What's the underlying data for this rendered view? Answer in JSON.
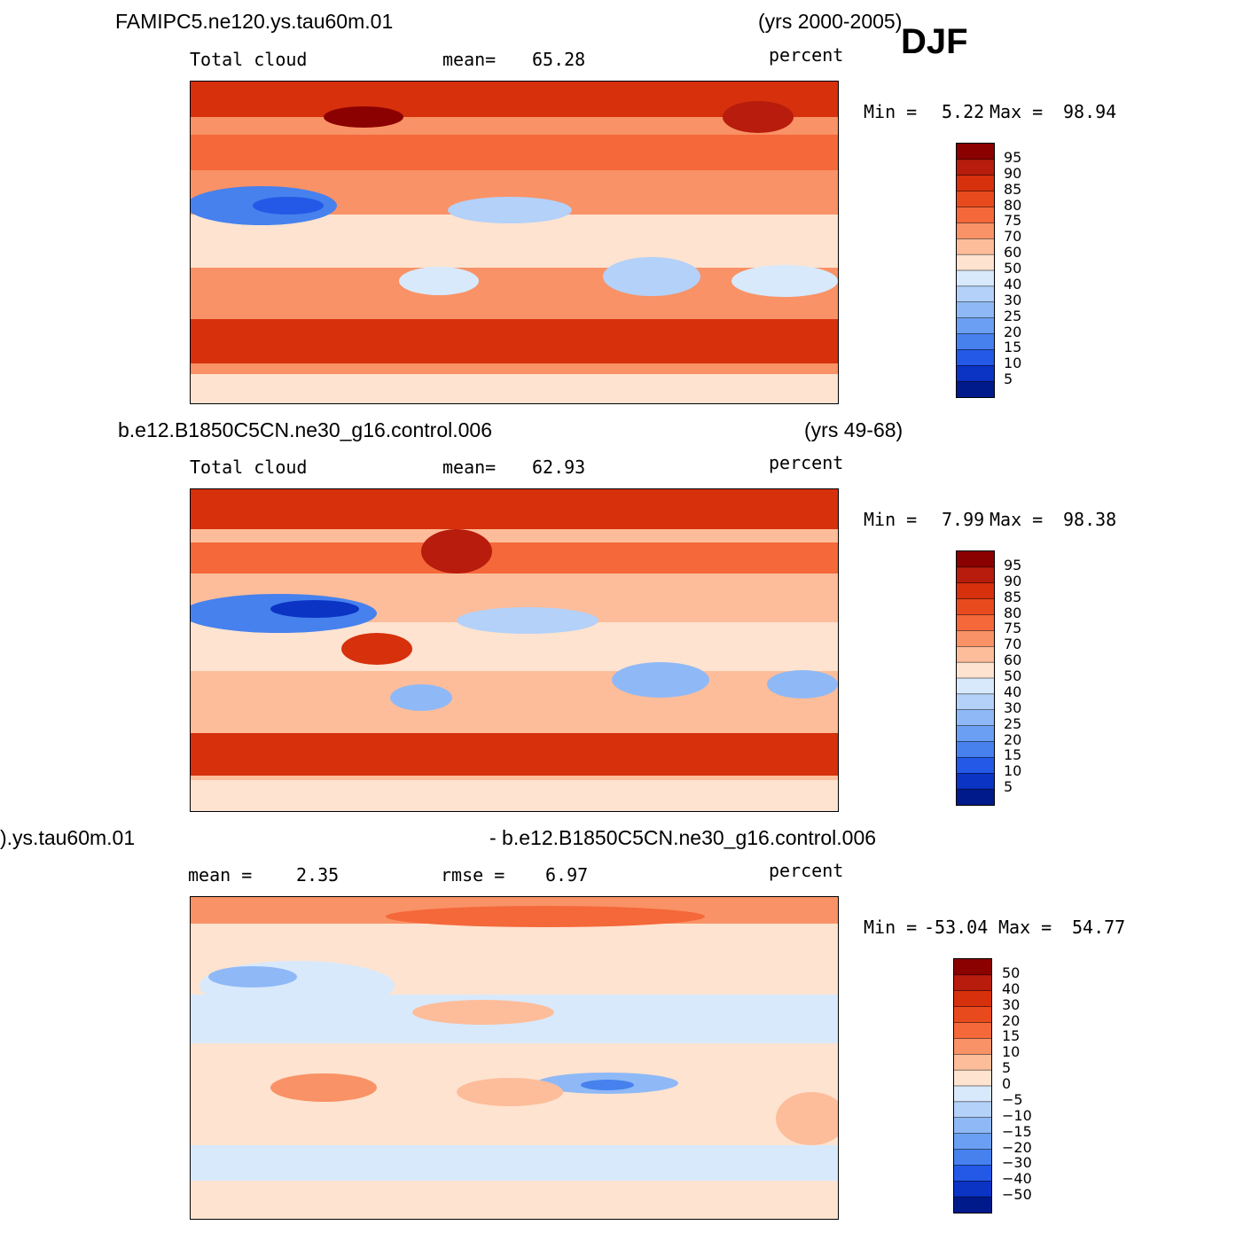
{
  "season_label": "DJF",
  "chart_data": [
    {
      "type": "heatmap",
      "run_name": "FAMIPC5.ne120.ys.tau60m.01",
      "years": "(yrs 2000-2005)",
      "variable": "Total cloud",
      "stat1_label": "mean=",
      "stat1_value": "65.28",
      "units": "percent",
      "min_label": "Min =",
      "min_value": "5.22",
      "max_label": "Max =",
      "max_value": "98.94",
      "colorbar_levels": [
        "95",
        "90",
        "85",
        "80",
        "75",
        "70",
        "60",
        "50",
        "40",
        "30",
        "25",
        "20",
        "15",
        "10",
        "5"
      ],
      "colors": [
        "#8b0000",
        "#b71c0c",
        "#d6300c",
        "#e94a1d",
        "#f4683a",
        "#f99266",
        "#fdbd9a",
        "#fde3d0",
        "#d8e9fc",
        "#b3d1f9",
        "#8fb9f6",
        "#6a9ff3",
        "#4681ee",
        "#2359e6",
        "#0b33c4",
        "#001a8c"
      ]
    },
    {
      "type": "heatmap",
      "run_name": "b.e12.B1850C5CN.ne30_g16.control.006",
      "years": "(yrs 49-68)",
      "variable": "Total cloud",
      "stat1_label": "mean=",
      "stat1_value": "62.93",
      "units": "percent",
      "min_label": "Min =",
      "min_value": "7.99",
      "max_label": "Max =",
      "max_value": "98.38",
      "colorbar_levels": [
        "95",
        "90",
        "85",
        "80",
        "75",
        "70",
        "60",
        "50",
        "40",
        "30",
        "25",
        "20",
        "15",
        "10",
        "5"
      ],
      "colors": [
        "#8b0000",
        "#b71c0c",
        "#d6300c",
        "#e94a1d",
        "#f4683a",
        "#f99266",
        "#fdbd9a",
        "#fde3d0",
        "#d8e9fc",
        "#b3d1f9",
        "#8fb9f6",
        "#6a9ff3",
        "#4681ee",
        "#2359e6",
        "#0b33c4",
        "#001a8c"
      ]
    },
    {
      "type": "heatmap",
      "left_title": ").ys.tau60m.01",
      "right_title": "- b.e12.B1850C5CN.ne30_g16.control.006",
      "stat1_label": "mean =",
      "stat1_value": "2.35",
      "stat2_label": "rmse =",
      "stat2_value": "6.97",
      "units": "percent",
      "min_label": "Min =",
      "min_value": "-53.04",
      "max_label": "Max =",
      "max_value": "54.77",
      "colorbar_levels": [
        "50",
        "40",
        "30",
        "20",
        "15",
        "10",
        "5",
        "0",
        "−5",
        "−10",
        "−15",
        "−20",
        "−30",
        "−40",
        "−50"
      ],
      "colors": [
        "#8b0000",
        "#b71c0c",
        "#d6300c",
        "#e94a1d",
        "#f4683a",
        "#f99266",
        "#fdbd9a",
        "#fde3d0",
        "#d8e9fc",
        "#b3d1f9",
        "#8fb9f6",
        "#6a9ff3",
        "#4681ee",
        "#2359e6",
        "#0b33c4",
        "#001a8c"
      ]
    }
  ]
}
